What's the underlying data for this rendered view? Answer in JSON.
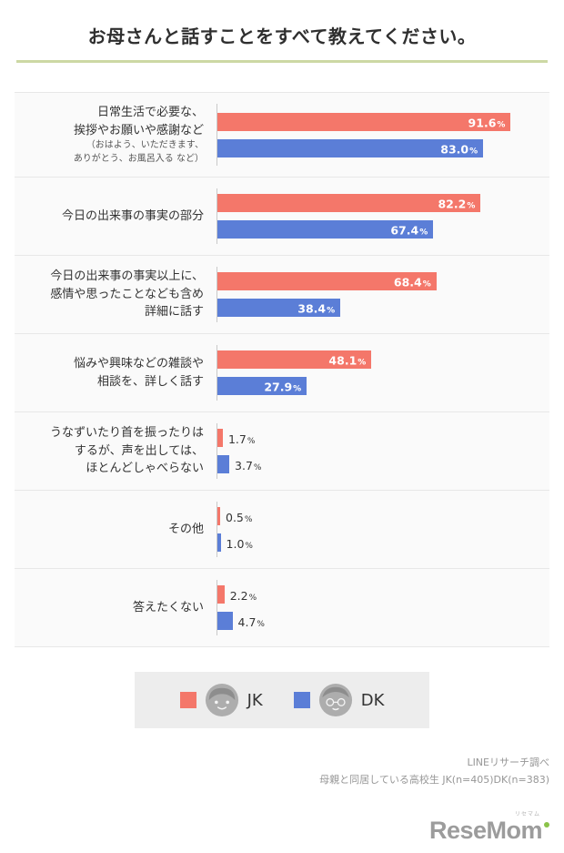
{
  "header": {
    "title": "お母さんと話すことをすべて教えてください。",
    "accent_color": "#ccd8a4"
  },
  "chart_data": {
    "type": "bar",
    "orientation": "horizontal",
    "title": "お母さんと話すことをすべて教えてください。",
    "xlim": [
      0,
      100
    ],
    "unit": "%",
    "categories": [
      "日常生活で必要な、挨拶やお願いや感謝など（おはよう、いただきます、ありがとう、お風呂入る など）",
      "今日の出来事の事実の部分",
      "今日の出来事の事実以上に、感情や思ったことなども含め詳細に話す",
      "悩みや興味などの雑談や相談を、詳しく話す",
      "うなずいたり首を振ったりはするが、声を出しては、ほとんどしゃべらない",
      "その他",
      "答えたくない"
    ],
    "series": [
      {
        "name": "JK",
        "color": "#F4776A",
        "values": [
          91.6,
          82.2,
          68.4,
          48.1,
          1.7,
          0.5,
          2.2
        ]
      },
      {
        "name": "DK",
        "color": "#5B7ED7",
        "values": [
          83.0,
          67.4,
          38.4,
          27.9,
          3.7,
          1.0,
          4.7
        ]
      }
    ],
    "legend_position": "bottom"
  },
  "rows": [
    {
      "label_lines": [
        "日常生活で必要な、",
        "挨拶やお願いや感謝など"
      ],
      "note_lines": [
        "（おはよう、いただきます、",
        "ありがとう、お風呂入る など）"
      ]
    },
    {
      "label_lines": [
        "今日の出来事の事実の部分"
      ]
    },
    {
      "label_lines": [
        "今日の出来事の事実以上に、",
        "感情や思ったことなども含め",
        "詳細に話す"
      ]
    },
    {
      "label_lines": [
        "悩みや興味などの雑談や",
        "相談を、詳しく話す"
      ]
    },
    {
      "label_lines": [
        "うなずいたり首を振ったりは",
        "するが、声を出しては、",
        "ほとんどしゃべらない"
      ]
    },
    {
      "label_lines": [
        "その他"
      ]
    },
    {
      "label_lines": [
        "答えたくない"
      ]
    }
  ],
  "legend": {
    "items": [
      {
        "label": "JK",
        "color": "#F4776A",
        "icon": "girl-face-icon"
      },
      {
        "label": "DK",
        "color": "#5B7ED7",
        "icon": "boy-face-icon"
      }
    ]
  },
  "footer": {
    "source_line1": "LINEリサーチ調べ",
    "source_line2": "母親と同居している高校生 JK(n=405)DK(n=383)"
  },
  "logo": {
    "text": "ReseMom",
    "ruby": "リセマム"
  }
}
